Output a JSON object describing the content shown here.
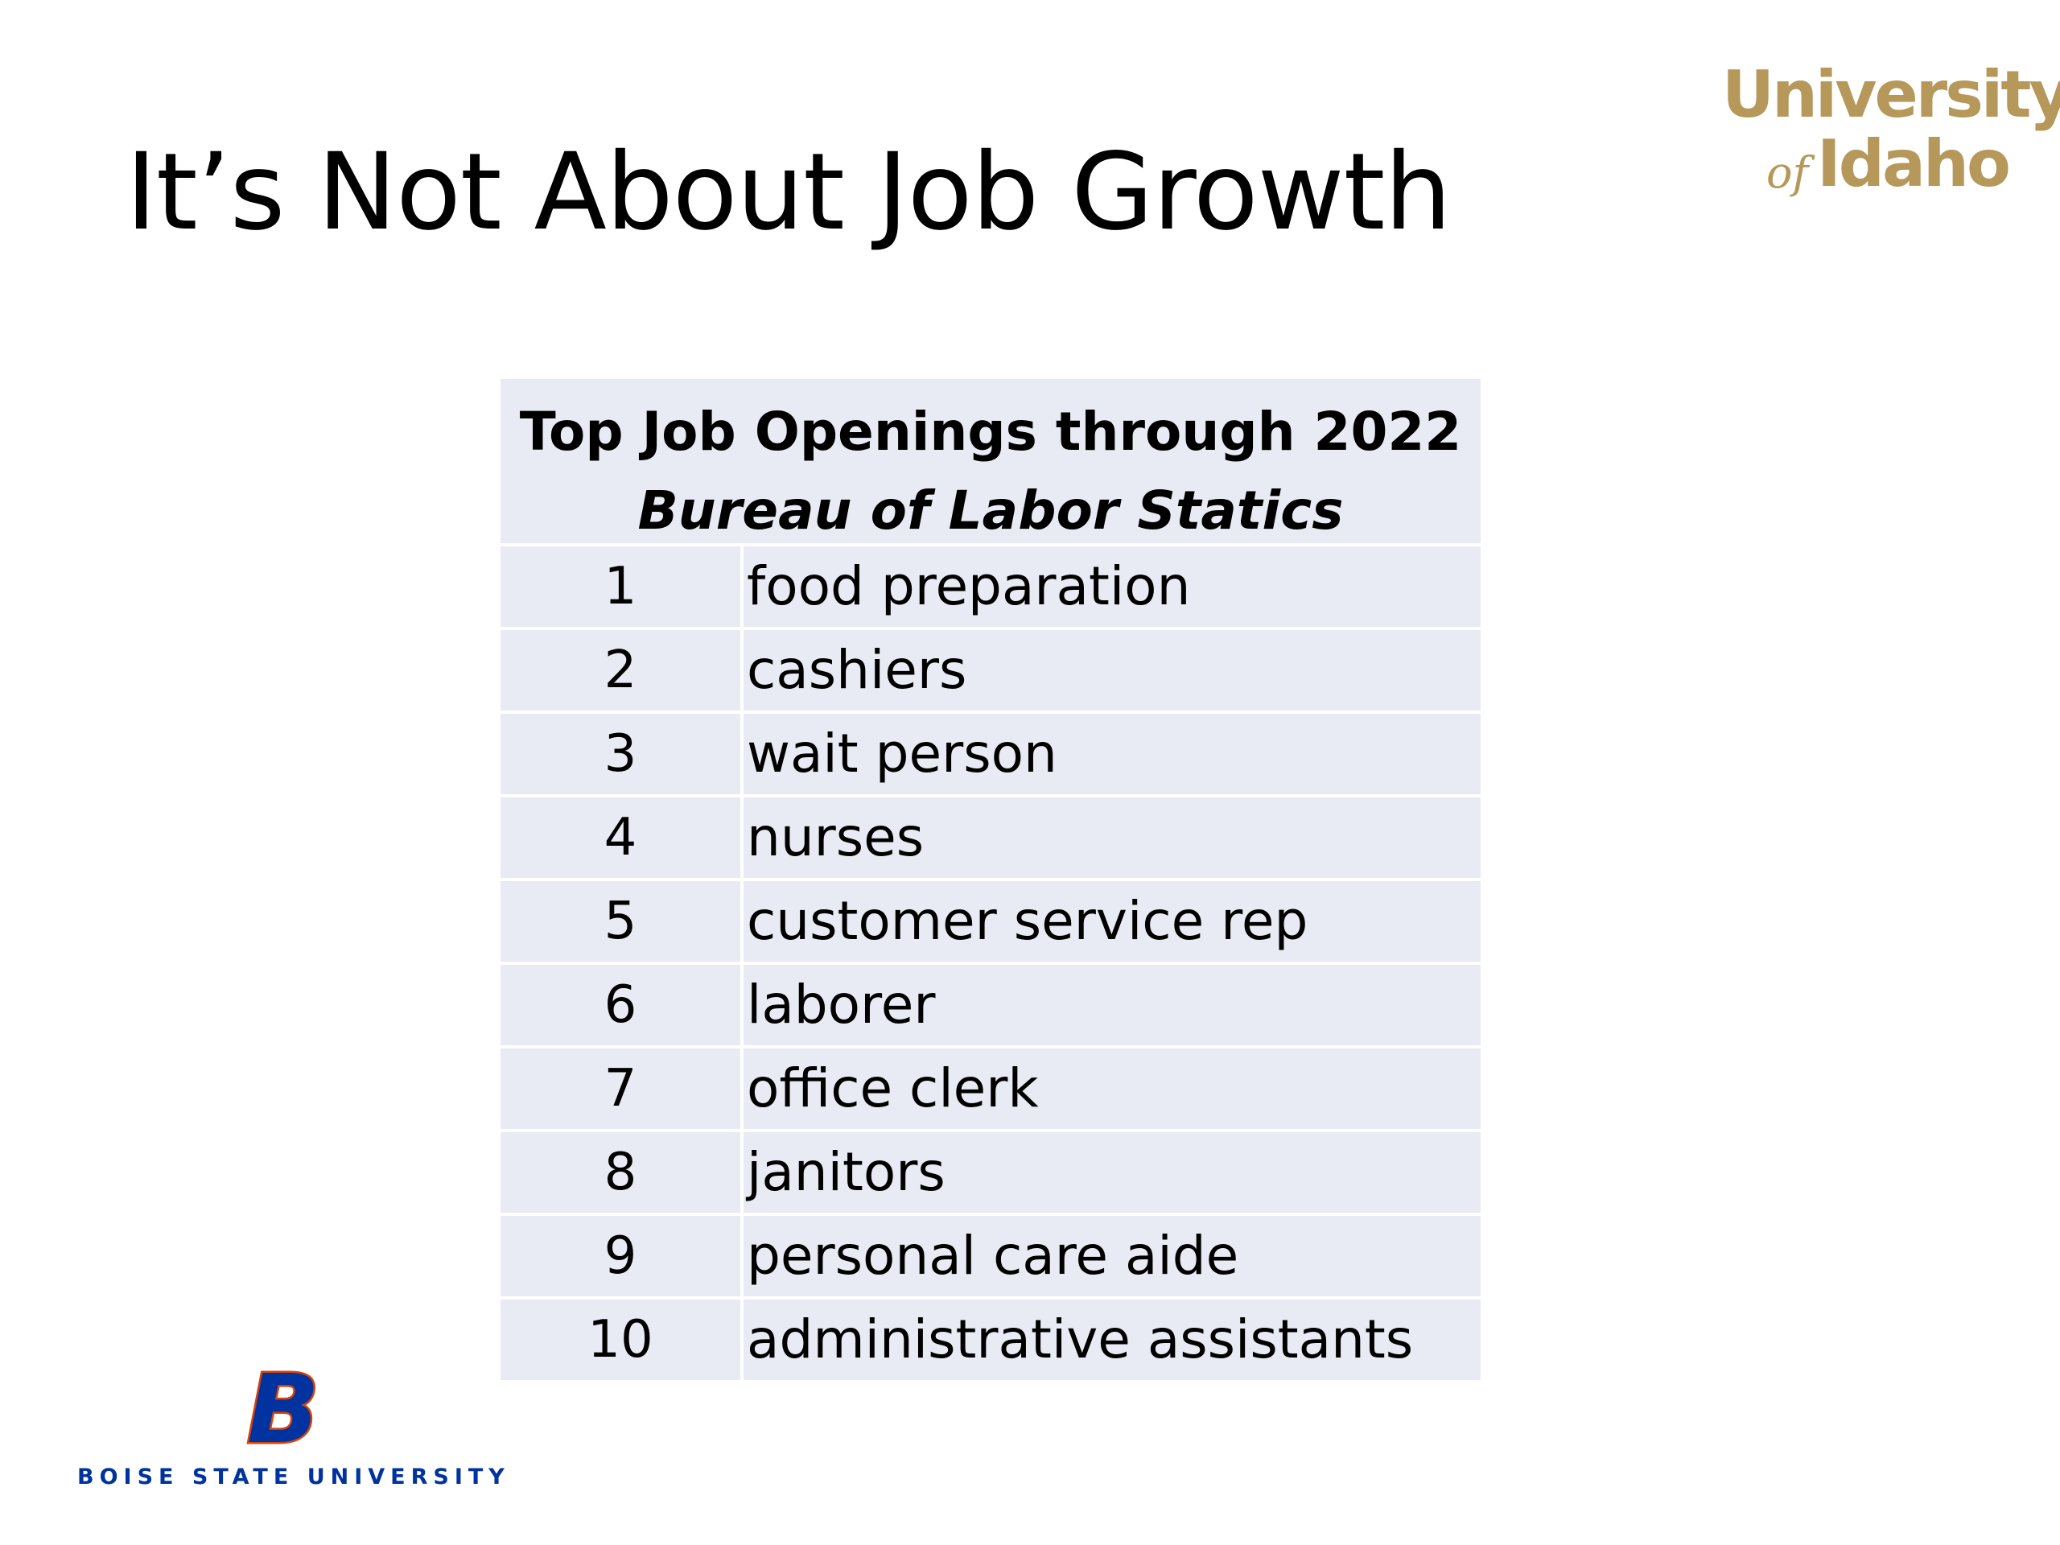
{
  "slide": {
    "title": "It’s Not About Job Growth"
  },
  "logos": {
    "uidaho_line1": "University",
    "uidaho_of": "of",
    "uidaho_line2": "Idaho",
    "bsu_text": "BOISE STATE UNIVERSITY",
    "bsu_monogram": "B"
  },
  "table": {
    "title": "Top Job Openings through 2022",
    "subtitle": "Bureau of Labor Statics",
    "rows": [
      {
        "rank": "1",
        "job": "food preparation"
      },
      {
        "rank": "2",
        "job": "cashiers"
      },
      {
        "rank": "3",
        "job": "wait person"
      },
      {
        "rank": "4",
        "job": "nurses"
      },
      {
        "rank": "5",
        "job": "customer service rep"
      },
      {
        "rank": "6",
        "job": "laborer"
      },
      {
        "rank": "7",
        "job": "office clerk"
      },
      {
        "rank": "8",
        "job": "janitors"
      },
      {
        "rank": "9",
        "job": "personal care aide"
      },
      {
        "rank": "10",
        "job": "administrative assistants"
      }
    ]
  },
  "colors": {
    "table_fill": "#e8ebf4",
    "uidaho_gold": "#b5985a",
    "bsu_blue": "#0033a0",
    "bsu_orange": "#d64309"
  }
}
